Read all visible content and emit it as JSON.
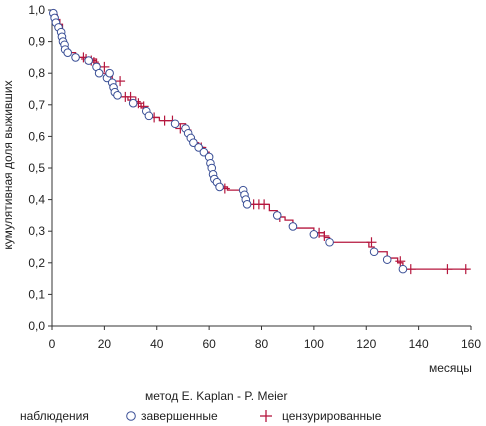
{
  "chart_data": {
    "type": "line",
    "title": "",
    "xlabel": "месяцы",
    "ylabel": "кумулятивная доля выживших",
    "xlim": [
      0,
      160
    ],
    "ylim": [
      0,
      1
    ],
    "xticks": [
      "0",
      "20",
      "40",
      "60",
      "80",
      "100",
      "120",
      "140",
      "160"
    ],
    "yticks": [
      "0,0",
      "0,1",
      "0,2",
      "0,3",
      "0,4",
      "0,5",
      "0,6",
      "0,7",
      "0,8",
      "0,9",
      "1,0"
    ],
    "grid": false,
    "method_note": "метод E. Kaplan - P. Meier",
    "legend": {
      "title": "наблюдения",
      "completed": "завершенные",
      "censored": "цензурированные",
      "placement": "bottom"
    },
    "colors": {
      "line": "#b5173e",
      "completed": "#3a4f96",
      "censored": "#b5173e",
      "axis": "#333333"
    },
    "steps": [
      [
        0,
        1.0
      ],
      [
        1,
        0.985
      ],
      [
        2,
        0.97
      ],
      [
        3,
        0.955
      ],
      [
        4,
        0.93
      ],
      [
        4.5,
        0.905
      ],
      [
        5,
        0.885
      ],
      [
        6,
        0.865
      ],
      [
        9,
        0.85
      ],
      [
        14,
        0.845
      ],
      [
        17,
        0.83
      ],
      [
        18,
        0.8
      ],
      [
        21,
        0.78
      ],
      [
        22,
        0.79
      ],
      [
        23,
        0.76
      ],
      [
        24,
        0.74
      ],
      [
        25,
        0.725
      ],
      [
        29,
        0.715
      ],
      [
        31,
        0.705
      ],
      [
        34,
        0.69
      ],
      [
        36,
        0.675
      ],
      [
        37,
        0.66
      ],
      [
        41,
        0.65
      ],
      [
        47,
        0.64
      ],
      [
        51,
        0.62
      ],
      [
        53,
        0.6
      ],
      [
        54,
        0.58
      ],
      [
        56,
        0.565
      ],
      [
        58,
        0.55
      ],
      [
        60,
        0.53
      ],
      [
        61,
        0.5
      ],
      [
        62,
        0.47
      ],
      [
        63,
        0.455
      ],
      [
        64,
        0.44
      ],
      [
        67,
        0.43
      ],
      [
        73,
        0.4
      ],
      [
        74,
        0.385
      ],
      [
        83,
        0.365
      ],
      [
        86,
        0.345
      ],
      [
        89,
        0.335
      ],
      [
        92,
        0.31
      ],
      [
        100,
        0.295
      ],
      [
        104,
        0.28
      ],
      [
        106,
        0.265
      ],
      [
        121,
        0.25
      ],
      [
        123,
        0.235
      ],
      [
        128,
        0.215
      ],
      [
        132,
        0.2
      ],
      [
        134,
        0.18
      ],
      [
        159,
        0.18
      ]
    ],
    "completed": [
      [
        0.5,
        0.99
      ],
      [
        1,
        0.975
      ],
      [
        1.5,
        0.96
      ],
      [
        2.5,
        0.945
      ],
      [
        3.5,
        0.93
      ],
      [
        3.8,
        0.915
      ],
      [
        4.2,
        0.9
      ],
      [
        4.8,
        0.89
      ],
      [
        5,
        0.875
      ],
      [
        6,
        0.865
      ],
      [
        9,
        0.85
      ],
      [
        14,
        0.84
      ],
      [
        17,
        0.82
      ],
      [
        18,
        0.8
      ],
      [
        21,
        0.785
      ],
      [
        22,
        0.8
      ],
      [
        23,
        0.77
      ],
      [
        23.5,
        0.755
      ],
      [
        24,
        0.74
      ],
      [
        25,
        0.73
      ],
      [
        31,
        0.705
      ],
      [
        36,
        0.68
      ],
      [
        37,
        0.665
      ],
      [
        47,
        0.64
      ],
      [
        51,
        0.625
      ],
      [
        52,
        0.61
      ],
      [
        53,
        0.595
      ],
      [
        54,
        0.58
      ],
      [
        56,
        0.565
      ],
      [
        58,
        0.55
      ],
      [
        60,
        0.535
      ],
      [
        60.5,
        0.515
      ],
      [
        61,
        0.5
      ],
      [
        61.5,
        0.48
      ],
      [
        62,
        0.465
      ],
      [
        63,
        0.455
      ],
      [
        64,
        0.44
      ],
      [
        73,
        0.43
      ],
      [
        73.5,
        0.415
      ],
      [
        74,
        0.4
      ],
      [
        74.5,
        0.385
      ],
      [
        86,
        0.35
      ],
      [
        92,
        0.315
      ],
      [
        100,
        0.29
      ],
      [
        106,
        0.265
      ],
      [
        123,
        0.235
      ],
      [
        128,
        0.21
      ],
      [
        134,
        0.18
      ]
    ],
    "censored": [
      [
        12,
        0.85
      ],
      [
        13,
        0.845
      ],
      [
        15,
        0.84
      ],
      [
        16,
        0.835
      ],
      [
        20,
        0.82
      ],
      [
        26,
        0.775
      ],
      [
        28,
        0.725
      ],
      [
        30,
        0.725
      ],
      [
        32,
        0.71
      ],
      [
        33,
        0.705
      ],
      [
        35,
        0.695
      ],
      [
        39,
        0.66
      ],
      [
        43,
        0.65
      ],
      [
        46,
        0.65
      ],
      [
        49,
        0.625
      ],
      [
        57,
        0.565
      ],
      [
        66,
        0.435
      ],
      [
        77,
        0.385
      ],
      [
        79,
        0.385
      ],
      [
        81,
        0.385
      ],
      [
        87,
        0.345
      ],
      [
        102,
        0.295
      ],
      [
        104,
        0.285
      ],
      [
        122,
        0.265
      ],
      [
        133,
        0.205
      ],
      [
        137,
        0.18
      ],
      [
        151,
        0.18
      ],
      [
        158,
        0.18
      ]
    ]
  }
}
